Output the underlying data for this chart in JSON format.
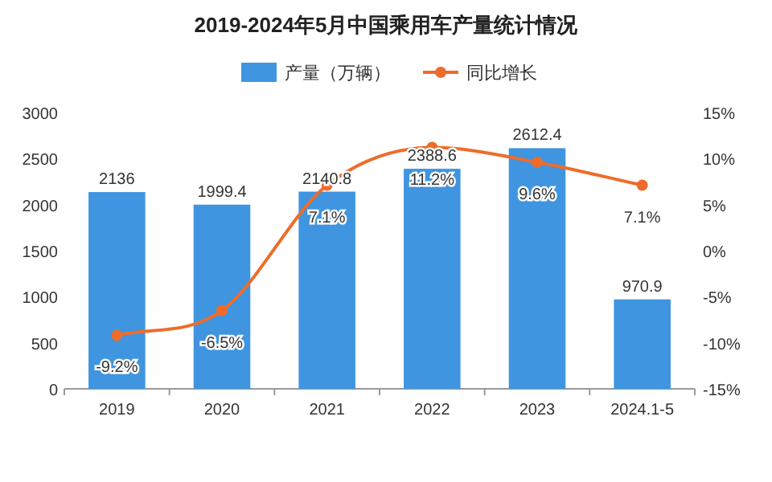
{
  "chart_data": {
    "type": "bar",
    "title": "2019-2024年5月中国乘用车产量统计情况",
    "categories": [
      "2019",
      "2020",
      "2021",
      "2022",
      "2023",
      "2024.1-5"
    ],
    "series": [
      {
        "name": "产量（万辆）",
        "color": "#3f95e0",
        "values": [
          2136,
          1999.4,
          2140.8,
          2388.6,
          2612.4,
          970.9
        ],
        "value_labels": [
          "2136",
          "1999.4",
          "2140.8",
          "2388.6",
          "2612.4",
          "970.9"
        ]
      },
      {
        "name": "同比增长",
        "type": "line",
        "axis": "y2",
        "color": "#ee6c2b",
        "marker": "circle",
        "values": [
          -9.2,
          -6.5,
          7.1,
          11.2,
          9.6,
          7.1
        ],
        "value_labels": [
          "-9.2%",
          "-6.5%",
          "7.1%",
          "11.2%",
          "9.6%",
          "7.1%"
        ]
      }
    ],
    "ylim": [
      0,
      3000
    ],
    "yticks": [
      0,
      500,
      1000,
      1500,
      2000,
      2500,
      3000
    ],
    "y2lim": [
      -15,
      15
    ],
    "y2ticks": [
      {
        "value": -15,
        "label": "-15%"
      },
      {
        "value": -10,
        "label": "-10%"
      },
      {
        "value": -5,
        "label": "-5%"
      },
      {
        "value": 0,
        "label": "0%"
      },
      {
        "value": 5,
        "label": "5%"
      },
      {
        "value": 10,
        "label": "10%"
      },
      {
        "value": 15,
        "label": "15%"
      }
    ],
    "legend": "top",
    "grid": false
  }
}
